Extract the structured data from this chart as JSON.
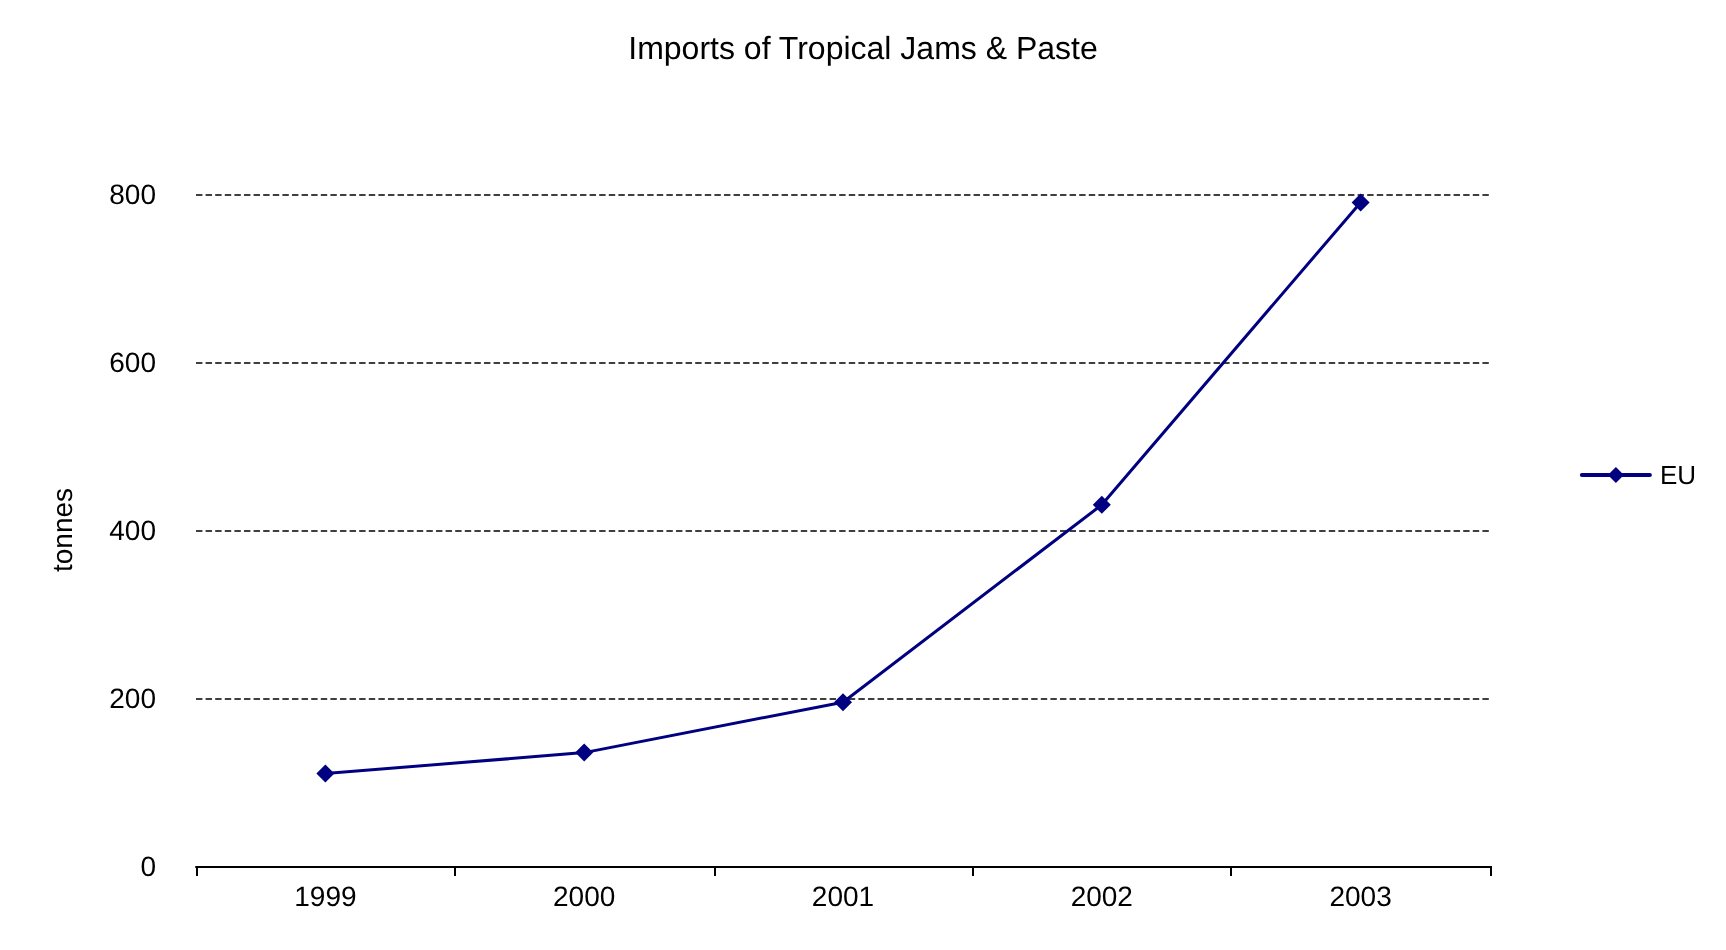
{
  "chart_data": {
    "type": "line",
    "title": "Imports of Tropical Jams & Paste",
    "ylabel": "tonnes",
    "categories": [
      "1999",
      "2000",
      "2001",
      "2002",
      "2003"
    ],
    "series": [
      {
        "name": "EU",
        "color": "#000080",
        "values": [
          110,
          135,
          195,
          430,
          790
        ]
      }
    ],
    "ylim": [
      0,
      800
    ],
    "yticks": [
      0,
      200,
      400,
      600,
      800
    ],
    "grid": "y",
    "legend": "right",
    "marker": "diamond",
    "line_style": "solid"
  }
}
